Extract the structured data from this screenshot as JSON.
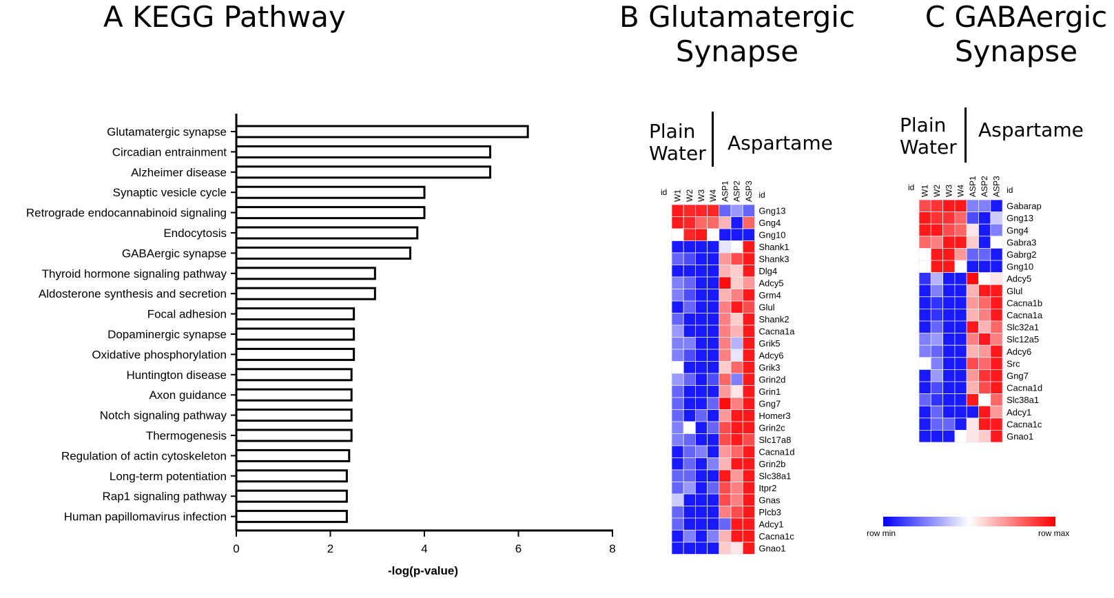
{
  "panels": {
    "a": {
      "title": "A KEGG Pathway"
    },
    "b": {
      "title_line1": "B Glutamatergic",
      "title_line2": "Synapse",
      "group1_line1": "Plain",
      "group1_line2": "Water",
      "group2": "Aspartame"
    },
    "c": {
      "title_line1": "C GABAergic",
      "title_line2": "Synapse",
      "group1_line1": "Plain",
      "group1_line2": "Water",
      "group2": "Aspartame"
    }
  },
  "legend": {
    "min_label": "row min",
    "max_label": "row max",
    "colors": {
      "low": "#0000ff",
      "mid": "#ffffff",
      "high": "#ff0000"
    }
  },
  "chart_data": [
    {
      "type": "bar",
      "orientation": "horizontal",
      "title": "A KEGG Pathway",
      "xlabel": "-log(p-value)",
      "ylabel": "",
      "xlim": [
        0,
        8
      ],
      "xticks": [
        0,
        2,
        4,
        6,
        8
      ],
      "categories": [
        "Glutamatergic synapse",
        "Circadian entrainment",
        "Alzheimer disease",
        "Synaptic vesicle cycle",
        "Retrograde endocannabinoid signaling",
        "Endocytosis",
        "GABAergic synapse",
        "Thyroid hormone signaling pathway",
        "Aldosterone synthesis and secretion",
        "Focal adhesion",
        "Dopaminergic synapse",
        "Oxidative phosphorylation",
        "Huntington disease",
        "Axon guidance",
        "Notch signaling pathway",
        "Thermogenesis",
        "Regulation of actin cytoskeleton",
        "Long-term potentiation",
        "Rap1 signaling pathway",
        "Human papillomavirus infection"
      ],
      "values": [
        6.2,
        5.4,
        5.4,
        4.0,
        4.0,
        3.85,
        3.7,
        2.95,
        2.95,
        2.5,
        2.5,
        2.5,
        2.45,
        2.45,
        2.45,
        2.45,
        2.4,
        2.35,
        2.35,
        2.35
      ],
      "grid": false
    },
    {
      "type": "heatmap",
      "title": "B Glutamatergic Synapse",
      "id_label": "id",
      "columns": [
        "W1",
        "W2",
        "W3",
        "W4",
        "ASP1",
        "ASP2",
        "ASP3"
      ],
      "rows": [
        "Gng13",
        "Gng4",
        "Gng10",
        "Shank1",
        "Shank3",
        "Dlg4",
        "Adcy5",
        "Grm4",
        "Glul",
        "Shank2",
        "Cacna1a",
        "Grik5",
        "Adcy6",
        "Grik3",
        "Grin2d",
        "Grin1",
        "Gng7",
        "Homer3",
        "Grin2c",
        "Slc17a8",
        "Cacna1d",
        "Grin2b",
        "Slc38a1",
        "Itpr2",
        "Gnas",
        "Plcb3",
        "Adcy1",
        "Cacna1c",
        "Gnao1"
      ],
      "scale": "row min (-1) to row max (+1)",
      "values": [
        [
          0.9,
          0.85,
          0.85,
          0.85,
          -0.6,
          -0.4,
          -0.6
        ],
        [
          0.9,
          0.85,
          0.6,
          0.6,
          0.3,
          -0.9,
          0.6
        ],
        [
          0.0,
          0.85,
          0.9,
          0.0,
          -0.9,
          -0.9,
          -0.9
        ],
        [
          -0.9,
          -0.9,
          -0.9,
          -0.9,
          -0.1,
          0.0,
          0.9
        ],
        [
          -0.6,
          -0.7,
          -0.9,
          -0.9,
          0.4,
          0.7,
          0.9
        ],
        [
          -0.9,
          -0.9,
          -0.9,
          -0.9,
          0.3,
          0.2,
          0.9
        ],
        [
          -0.5,
          -0.6,
          -0.9,
          -0.9,
          0.95,
          0.2,
          0.4
        ],
        [
          -0.5,
          -0.7,
          -0.9,
          -0.9,
          0.3,
          0.5,
          0.9
        ],
        [
          -0.9,
          -0.6,
          -0.9,
          -0.9,
          0.5,
          0.9,
          0.7
        ],
        [
          -0.6,
          -0.9,
          -0.9,
          -0.9,
          0.5,
          0.2,
          0.9
        ],
        [
          -0.4,
          -0.9,
          -0.9,
          -0.9,
          0.5,
          0.3,
          0.9
        ],
        [
          -0.5,
          -0.5,
          -0.9,
          -0.9,
          0.5,
          -0.3,
          0.9
        ],
        [
          -0.5,
          -0.7,
          -0.9,
          -0.9,
          0.5,
          -0.1,
          0.9
        ],
        [
          0.0,
          -0.9,
          -0.9,
          -0.9,
          0.2,
          0.6,
          0.9
        ],
        [
          -0.4,
          -0.6,
          -0.9,
          -0.7,
          0.6,
          -0.5,
          0.9
        ],
        [
          -0.6,
          -0.9,
          -0.9,
          -0.9,
          0.4,
          0.1,
          0.9
        ],
        [
          -0.6,
          -0.9,
          -0.9,
          -0.6,
          0.95,
          0.5,
          0.9
        ],
        [
          -0.6,
          -0.9,
          -0.6,
          -0.9,
          0.4,
          0.9,
          0.9
        ],
        [
          -0.5,
          0.0,
          -0.9,
          -0.6,
          0.7,
          0.9,
          0.9
        ],
        [
          -0.5,
          -0.6,
          -0.9,
          -0.9,
          0.7,
          0.9,
          0.7
        ],
        [
          -0.9,
          -0.6,
          -0.5,
          -0.9,
          0.4,
          0.6,
          0.9
        ],
        [
          -0.9,
          -0.6,
          -0.9,
          -0.5,
          0.3,
          0.9,
          0.9
        ],
        [
          -0.6,
          -0.6,
          -0.9,
          -0.9,
          0.9,
          0.4,
          0.9
        ],
        [
          -0.6,
          -0.4,
          -0.9,
          -0.6,
          0.7,
          0.5,
          0.9
        ],
        [
          -0.2,
          -0.9,
          -0.9,
          -0.9,
          0.7,
          0.5,
          0.9
        ],
        [
          -0.6,
          -0.9,
          -0.9,
          -0.9,
          0.5,
          0.7,
          0.9
        ],
        [
          -0.6,
          -0.9,
          -0.9,
          -0.9,
          -0.6,
          0.9,
          0.9
        ],
        [
          -0.9,
          -0.5,
          -0.9,
          -0.5,
          0.3,
          0.9,
          0.9
        ],
        [
          -0.9,
          -0.9,
          -0.9,
          -0.9,
          0.2,
          0.1,
          0.9
        ]
      ]
    },
    {
      "type": "heatmap",
      "title": "C GABAergic Synapse",
      "id_label": "id",
      "columns": [
        "W1",
        "W2",
        "W3",
        "W4",
        "ASP1",
        "ASP2",
        "ASP3"
      ],
      "rows": [
        "Gabarap",
        "Gng13",
        "Gng4",
        "Gabra3",
        "Gabrg2",
        "Gng10",
        "Adcy5",
        "Glul",
        "Cacna1b",
        "Cacna1a",
        "Slc32a1",
        "Slc12a5",
        "Adcy6",
        "Src",
        "Gng7",
        "Cacna1d",
        "Slc38a1",
        "Adcy1",
        "Cacna1c",
        "Gnao1"
      ],
      "scale": "row min (-1) to row max (+1)",
      "values": [
        [
          0.7,
          0.8,
          0.9,
          0.9,
          -0.5,
          -0.5,
          -0.9
        ],
        [
          0.9,
          0.8,
          0.8,
          0.6,
          -0.7,
          -0.9,
          -0.2
        ],
        [
          0.9,
          0.9,
          0.7,
          0.6,
          0.1,
          -0.9,
          -0.5
        ],
        [
          0.6,
          0.5,
          0.9,
          0.9,
          0.2,
          -0.9,
          0.0
        ],
        [
          0.0,
          0.9,
          0.9,
          0.4,
          -0.6,
          -0.6,
          -0.9
        ],
        [
          0.0,
          0.9,
          0.9,
          0.0,
          -0.9,
          -0.9,
          -0.9
        ],
        [
          -0.8,
          -0.3,
          -0.9,
          -0.9,
          0.95,
          0.0,
          0.1
        ],
        [
          -0.9,
          -0.5,
          -0.9,
          -0.9,
          0.3,
          0.9,
          0.9
        ],
        [
          -0.9,
          -0.8,
          -0.9,
          -0.9,
          0.4,
          0.6,
          0.9
        ],
        [
          -0.9,
          -0.8,
          -0.9,
          -0.9,
          0.3,
          0.5,
          0.9
        ],
        [
          -0.9,
          -0.6,
          -0.9,
          -0.9,
          0.9,
          0.3,
          0.6
        ],
        [
          -0.5,
          -0.4,
          -0.9,
          -0.9,
          0.5,
          0.9,
          0.5
        ],
        [
          -0.5,
          -0.6,
          -0.9,
          -0.9,
          0.3,
          0.4,
          0.9
        ],
        [
          0.0,
          -0.5,
          -0.9,
          -0.9,
          0.7,
          0.6,
          0.9
        ],
        [
          -0.9,
          -0.4,
          -0.9,
          -0.9,
          0.4,
          0.8,
          0.9
        ],
        [
          -0.9,
          -0.7,
          -0.9,
          -0.9,
          0.3,
          0.7,
          0.9
        ],
        [
          -0.6,
          -0.8,
          -0.9,
          -0.9,
          0.9,
          0.0,
          0.6
        ],
        [
          -0.9,
          -0.6,
          -0.9,
          -0.9,
          -0.9,
          0.9,
          0.4
        ],
        [
          -0.9,
          -0.6,
          -0.6,
          -0.9,
          0.1,
          0.9,
          0.9
        ],
        [
          -0.9,
          -0.9,
          -0.9,
          0.0,
          0.1,
          0.2,
          0.9
        ]
      ]
    }
  ]
}
